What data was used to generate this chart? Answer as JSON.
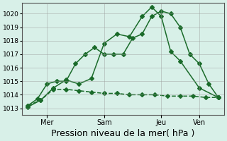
{
  "title": "",
  "xlabel": "Pression niveau de la mer( hPa )",
  "ylabel": "",
  "bg_color": "#d8f0e8",
  "line_color": "#1a6b2a",
  "ylim": [
    1012.5,
    1020.8
  ],
  "yticks": [
    1013,
    1014,
    1015,
    1016,
    1017,
    1018,
    1019,
    1020
  ],
  "xtick_labels": [
    "Mer",
    "Sam",
    "Jeu",
    "Ven"
  ],
  "xtick_positions": [
    1,
    4,
    7,
    9
  ],
  "line1_x": [
    0,
    0.5,
    1,
    1.5,
    2,
    2.5,
    3,
    3.5,
    4,
    4.5,
    5,
    5.5,
    6,
    6.5,
    7,
    7.5,
    8,
    8.5,
    9,
    9.5,
    10
  ],
  "line1_y": [
    1013.2,
    1013.7,
    1014.8,
    1015.0,
    1015.0,
    1016.3,
    1017.0,
    1017.5,
    1017.0,
    1017.0,
    1017.0,
    1018.2,
    1018.5,
    1019.8,
    1020.2,
    1020.0,
    1019.0,
    1017.0,
    1016.3,
    1014.8,
    1013.8
  ],
  "line2_x": [
    0,
    0.67,
    1.33,
    2,
    2.67,
    3.33,
    4,
    4.67,
    5.33,
    6,
    6.5,
    7,
    7.5,
    8,
    9,
    10
  ],
  "line2_y": [
    1013.1,
    1013.6,
    1014.5,
    1015.1,
    1014.8,
    1015.2,
    1017.8,
    1018.5,
    1018.3,
    1019.8,
    1020.5,
    1019.8,
    1017.2,
    1016.5,
    1014.5,
    1013.8
  ],
  "line3_x": [
    0,
    0.67,
    1.33,
    2,
    2.67,
    3.33,
    4,
    4.67,
    5.33,
    6,
    6.67,
    7.33,
    8,
    8.67,
    9.33,
    10
  ],
  "line3_y": [
    1013.2,
    1013.6,
    1014.4,
    1014.4,
    1014.3,
    1014.2,
    1014.1,
    1014.1,
    1014.0,
    1014.0,
    1014.0,
    1013.9,
    1013.9,
    1013.9,
    1013.8,
    1013.8
  ],
  "grid_color": "#999999",
  "xlabel_fontsize": 9
}
